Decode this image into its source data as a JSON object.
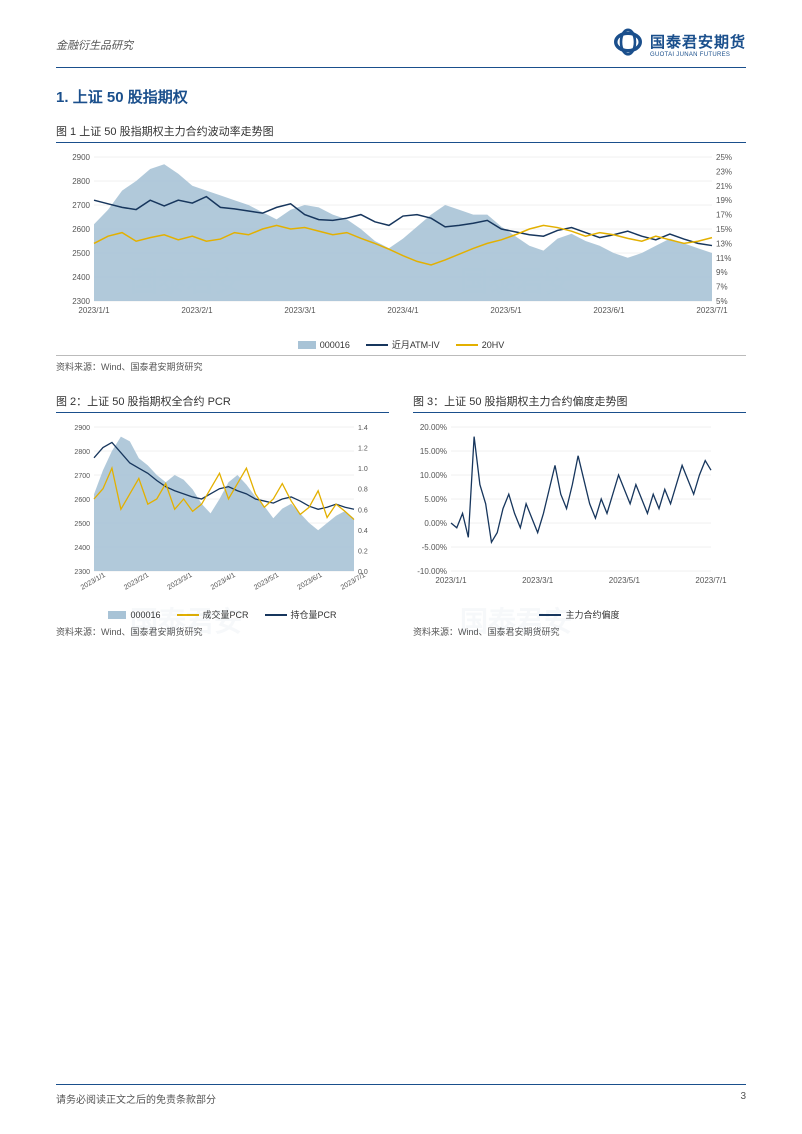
{
  "header": {
    "left": "金融衍生品研究",
    "brand": "国泰君安期货",
    "brand_sub": "GUOTAI JUNAN FUTURES"
  },
  "section": {
    "number": "1.",
    "title": "上证 50 股指期权"
  },
  "colors": {
    "brand": "#1a4f8c",
    "area": "#a8c3d6",
    "area_fill": "#a8c3d6",
    "line_dark": "#17365d",
    "line_yellow": "#e3b000",
    "grid": "#e0e0e0",
    "text": "#333333",
    "axis": "#555555",
    "bg": "#ffffff"
  },
  "chart1": {
    "title": "图 1 上证 50 股指期权主力合约波动率走势图",
    "type": "area+line",
    "x_labels": [
      "2023/1/1",
      "2023/2/1",
      "2023/3/1",
      "2023/4/1",
      "2023/5/1",
      "2023/6/1",
      "2023/7/1"
    ],
    "y_left": {
      "min": 2300,
      "max": 2900,
      "step": 100
    },
    "y_right": {
      "min": 5,
      "max": 25,
      "step": 2,
      "suffix": "%"
    },
    "series_area": {
      "name": "000016",
      "color": "#a8c3d6",
      "data": [
        2620,
        2680,
        2760,
        2800,
        2850,
        2870,
        2830,
        2780,
        2760,
        2740,
        2720,
        2700,
        2670,
        2640,
        2680,
        2700,
        2690,
        2660,
        2640,
        2600,
        2550,
        2520,
        2560,
        2610,
        2660,
        2700,
        2680,
        2660,
        2660,
        2610,
        2570,
        2530,
        2510,
        2560,
        2580,
        2550,
        2530,
        2500,
        2480,
        2500,
        2530,
        2560,
        2540,
        2520,
        2500
      ]
    },
    "series_dark": {
      "name": "近月ATM-IV",
      "color": "#17365d",
      "width": 1.5,
      "data": [
        19,
        18.5,
        18,
        17.7,
        19,
        18.2,
        19,
        18.6,
        19.5,
        18,
        17.8,
        17.5,
        17.2,
        18,
        18.5,
        17,
        16.3,
        16.2,
        16.5,
        17,
        16,
        15.5,
        16.8,
        17,
        16.5,
        15.3,
        15.5,
        15.8,
        16.2,
        15,
        14.6,
        14.2,
        14,
        14.8,
        15.2,
        14.5,
        13.8,
        14.2,
        14.7,
        14,
        13.5,
        14.3,
        13.6,
        13,
        12.7
      ]
    },
    "series_yellow": {
      "name": "20HV",
      "color": "#e3b000",
      "width": 1.5,
      "data": [
        13,
        14,
        14.5,
        13.3,
        13.8,
        14.2,
        13.5,
        14,
        13.3,
        13.6,
        14.5,
        14.2,
        15,
        15.5,
        15,
        15.2,
        14.7,
        14.2,
        14.5,
        13.7,
        13,
        12.2,
        11.3,
        10.5,
        10,
        10.7,
        11.5,
        12.3,
        13,
        13.5,
        14.2,
        15,
        15.5,
        15.2,
        14.7,
        14,
        14.5,
        14.2,
        13.7,
        13.3,
        14,
        13.5,
        13,
        13.3,
        13.8
      ]
    },
    "legend": [
      "000016",
      "近月ATM-IV",
      "20HV"
    ],
    "source": "资料来源：Wind、国泰君安期货研究",
    "fontsize_tick": 8
  },
  "chart2": {
    "title": "图 2：上证 50 股指期权全合约 PCR",
    "type": "area+line",
    "x_labels": [
      "2023/1/1",
      "2023/2/1",
      "2023/3/1",
      "2023/4/1",
      "2023/5/1",
      "2023/6/1",
      "2023/7/1"
    ],
    "y_left": {
      "min": 2300,
      "max": 2900,
      "step": 100
    },
    "y_right": {
      "min": 0,
      "max": 1.4,
      "step": 0.2
    },
    "series_area": {
      "name": "000016",
      "color": "#a8c3d6",
      "data": [
        2620,
        2720,
        2800,
        2860,
        2840,
        2770,
        2740,
        2700,
        2670,
        2700,
        2680,
        2640,
        2580,
        2540,
        2600,
        2670,
        2700,
        2660,
        2610,
        2570,
        2520,
        2560,
        2580,
        2540,
        2500,
        2470,
        2500,
        2530,
        2550,
        2520
      ]
    },
    "series_yellow": {
      "name": "成交量PCR",
      "color": "#e3b000",
      "width": 1.3,
      "data": [
        0.7,
        0.8,
        1.0,
        0.6,
        0.75,
        0.9,
        0.65,
        0.7,
        0.85,
        0.6,
        0.7,
        0.58,
        0.65,
        0.8,
        0.95,
        0.7,
        0.85,
        1.0,
        0.75,
        0.62,
        0.7,
        0.85,
        0.68,
        0.55,
        0.62,
        0.78,
        0.52,
        0.65,
        0.58,
        0.5
      ]
    },
    "series_dark": {
      "name": "持仓量PCR",
      "color": "#17365d",
      "width": 1.3,
      "data": [
        1.1,
        1.2,
        1.25,
        1.15,
        1.05,
        1.0,
        0.95,
        0.88,
        0.82,
        0.78,
        0.75,
        0.72,
        0.7,
        0.75,
        0.8,
        0.82,
        0.78,
        0.75,
        0.7,
        0.68,
        0.66,
        0.7,
        0.72,
        0.68,
        0.63,
        0.6,
        0.62,
        0.65,
        0.62,
        0.6
      ]
    },
    "legend": [
      "000016",
      "成交量PCR",
      "持仓量PCR"
    ],
    "source": "资料来源：Wind、国泰君安期货研究",
    "fontsize_tick": 7
  },
  "chart3": {
    "title": "图 3：上证 50 股指期权主力合约偏度走势图",
    "type": "line",
    "x_labels": [
      "2023/1/1",
      "2023/3/1",
      "2023/5/1",
      "2023/7/1"
    ],
    "y": {
      "min": -10,
      "max": 20,
      "step": 5,
      "suffix": "%",
      "format": "0.00%"
    },
    "series_dark": {
      "name": "主力合约偏度",
      "color": "#17365d",
      "width": 1.3,
      "data": [
        0,
        -1,
        2,
        -3,
        18,
        8,
        4,
        -4,
        -2,
        3,
        6,
        2,
        -1,
        4,
        1,
        -2,
        2,
        7,
        12,
        6,
        3,
        8,
        14,
        9,
        4,
        1,
        5,
        2,
        6,
        10,
        7,
        4,
        8,
        5,
        2,
        6,
        3,
        7,
        4,
        8,
        12,
        9,
        6,
        10,
        13,
        11
      ]
    },
    "legend": [
      "主力合约偏度"
    ],
    "source": "资料来源：Wind、国泰君安期货研究",
    "fontsize_tick": 8
  },
  "footer": {
    "text": "请务必阅读正文之后的免责条款部分",
    "page": "3"
  }
}
